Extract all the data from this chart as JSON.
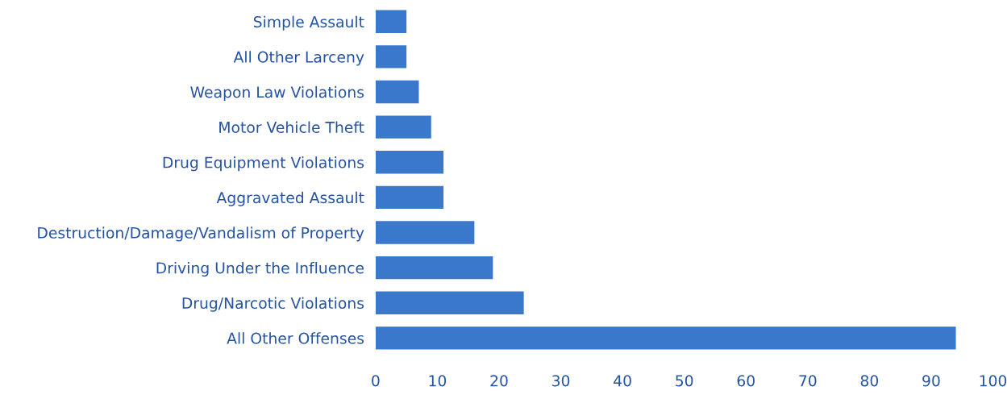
{
  "chart_data": {
    "type": "bar",
    "orientation": "horizontal",
    "categories": [
      "Simple Assault",
      "All Other Larceny",
      "Weapon Law Violations",
      "Motor Vehicle Theft",
      "Drug Equipment Violations",
      "Aggravated Assault",
      "Destruction/Damage/Vandalism of Property",
      "Driving Under the Influence",
      "Drug/Narcotic Violations",
      "All Other Offenses"
    ],
    "values": [
      5,
      5,
      7,
      9,
      11,
      11,
      16,
      19,
      24,
      94
    ],
    "color": "#3a78cc",
    "xlim": [
      0,
      100
    ],
    "xticks": [
      0,
      10,
      20,
      30,
      40,
      50,
      60,
      70,
      80,
      90,
      100
    ],
    "grid": false,
    "legend": false
  }
}
